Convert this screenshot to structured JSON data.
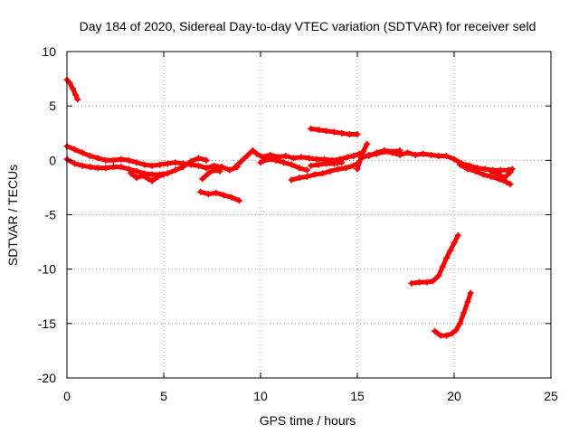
{
  "chart_data": {
    "type": "scatter",
    "title": "Day 184 of 2020, Sidereal Day-to-day VTEC variation (SDTVAR) for receiver seld",
    "xlabel": "GPS time / hours",
    "ylabel": "SDTVAR / TECUs",
    "xlim": [
      0,
      25
    ],
    "ylim": [
      -20,
      10
    ],
    "xticks": [
      0,
      5,
      10,
      15,
      20,
      25
    ],
    "yticks": [
      -20,
      -15,
      -10,
      -5,
      0,
      5,
      10
    ],
    "grid": true,
    "legend": "none",
    "series": [
      {
        "name": "SDTVAR",
        "color": "#ff0000",
        "marker": "+",
        "segments": [
          [
            [
              0.0,
              7.4
            ],
            [
              0.15,
              7.1
            ],
            [
              0.3,
              6.6
            ],
            [
              0.45,
              6.0
            ],
            [
              0.55,
              5.6
            ]
          ],
          [
            [
              0.0,
              1.3
            ],
            [
              0.4,
              1.0
            ],
            [
              0.8,
              0.7
            ],
            [
              1.2,
              0.4
            ],
            [
              1.6,
              0.2
            ],
            [
              2.0,
              0.0
            ],
            [
              2.4,
              0.0
            ],
            [
              2.8,
              0.1
            ],
            [
              3.2,
              0.0
            ],
            [
              3.6,
              -0.2
            ],
            [
              4.0,
              -0.4
            ],
            [
              4.4,
              -0.5
            ],
            [
              4.8,
              -0.4
            ],
            [
              5.2,
              -0.3
            ],
            [
              5.6,
              -0.2
            ],
            [
              6.0,
              -0.3
            ],
            [
              6.4,
              -0.4
            ],
            [
              6.8,
              -0.5
            ],
            [
              7.2,
              -0.7
            ],
            [
              7.6,
              -0.5
            ],
            [
              8.0,
              -0.6
            ],
            [
              8.4,
              -0.9
            ],
            [
              8.8,
              -0.6
            ]
          ],
          [
            [
              0.0,
              0.1
            ],
            [
              0.4,
              -0.3
            ],
            [
              0.8,
              -0.5
            ],
            [
              1.2,
              -0.6
            ],
            [
              1.6,
              -0.7
            ],
            [
              2.0,
              -0.7
            ],
            [
              2.4,
              -0.6
            ],
            [
              2.8,
              -0.6
            ],
            [
              3.2,
              -0.8
            ],
            [
              3.6,
              -1.0
            ],
            [
              4.0,
              -1.2
            ],
            [
              4.4,
              -1.3
            ],
            [
              4.8,
              -1.3
            ],
            [
              5.2,
              -1.2
            ],
            [
              5.6,
              -0.9
            ],
            [
              6.0,
              -0.6
            ],
            [
              6.4,
              -0.1
            ],
            [
              6.8,
              0.2
            ],
            [
              7.2,
              0.0
            ]
          ],
          [
            [
              3.3,
              -1.2
            ],
            [
              3.6,
              -1.6
            ],
            [
              3.9,
              -1.4
            ],
            [
              4.2,
              -1.7
            ],
            [
              4.4,
              -1.9
            ],
            [
              4.7,
              -1.5
            ],
            [
              5.0,
              -1.3
            ]
          ],
          [
            [
              7.0,
              -1.7
            ],
            [
              7.3,
              -1.2
            ],
            [
              7.6,
              -0.9
            ],
            [
              7.9,
              -1.0
            ]
          ],
          [
            [
              6.9,
              -2.9
            ],
            [
              7.3,
              -3.1
            ],
            [
              7.7,
              -3.0
            ],
            [
              8.1,
              -3.2
            ],
            [
              8.5,
              -3.4
            ],
            [
              8.9,
              -3.7
            ]
          ],
          [
            [
              8.7,
              -0.6
            ],
            [
              9.0,
              -0.1
            ],
            [
              9.3,
              0.4
            ],
            [
              9.6,
              0.9
            ],
            [
              9.8,
              0.6
            ],
            [
              10.1,
              0.3
            ],
            [
              10.5,
              0.5
            ],
            [
              10.9,
              0.3
            ],
            [
              11.3,
              0.4
            ],
            [
              11.7,
              0.2
            ],
            [
              12.1,
              0.3
            ],
            [
              12.5,
              0.2
            ],
            [
              12.9,
              0.1
            ],
            [
              13.3,
              0.1
            ],
            [
              13.7,
              0.0
            ],
            [
              14.1,
              0.1
            ],
            [
              14.5,
              0.3
            ],
            [
              14.8,
              0.4
            ],
            [
              15.1,
              0.6
            ]
          ],
          [
            [
              10.0,
              -0.2
            ],
            [
              10.4,
              0.1
            ],
            [
              10.8,
              0.0
            ],
            [
              11.2,
              -0.2
            ],
            [
              11.6,
              -0.4
            ],
            [
              12.0,
              -0.7
            ],
            [
              12.4,
              -0.9
            ]
          ],
          [
            [
              11.6,
              -1.8
            ],
            [
              12.0,
              -1.6
            ],
            [
              12.4,
              -1.5
            ],
            [
              12.8,
              -1.3
            ],
            [
              13.2,
              -1.2
            ],
            [
              13.6,
              -1.0
            ],
            [
              14.0,
              -0.8
            ],
            [
              14.4,
              -0.7
            ],
            [
              14.8,
              -0.5
            ],
            [
              15.0,
              -0.3
            ]
          ],
          [
            [
              12.6,
              -0.5
            ],
            [
              13.0,
              -0.4
            ],
            [
              13.4,
              -0.3
            ],
            [
              13.8,
              -0.3
            ],
            [
              14.2,
              -0.2
            ]
          ],
          [
            [
              12.6,
              2.9
            ],
            [
              13.0,
              2.8
            ],
            [
              13.4,
              2.7
            ],
            [
              13.8,
              2.6
            ],
            [
              14.2,
              2.5
            ],
            [
              14.6,
              2.4
            ],
            [
              15.0,
              2.4
            ]
          ],
          [
            [
              15.0,
              -0.8
            ],
            [
              15.3,
              0.8
            ],
            [
              15.5,
              1.5
            ]
          ],
          [
            [
              15.2,
              0.2
            ],
            [
              15.6,
              0.5
            ],
            [
              16.0,
              0.6
            ],
            [
              16.4,
              0.8
            ],
            [
              16.8,
              0.7
            ],
            [
              17.2,
              0.5
            ],
            [
              17.6,
              0.7
            ],
            [
              18.0,
              0.5
            ],
            [
              18.4,
              0.6
            ],
            [
              18.8,
              0.5
            ],
            [
              19.2,
              0.4
            ],
            [
              19.6,
              0.4
            ],
            [
              20.0,
              0.1
            ],
            [
              20.4,
              -0.3
            ],
            [
              20.8,
              -0.5
            ],
            [
              21.2,
              -0.7
            ],
            [
              21.6,
              -0.8
            ],
            [
              22.0,
              -0.9
            ],
            [
              22.4,
              -0.9
            ],
            [
              22.8,
              -0.9
            ],
            [
              23.0,
              -0.8
            ]
          ],
          [
            [
              15.6,
              0.4
            ],
            [
              16.0,
              0.7
            ],
            [
              16.4,
              0.9
            ],
            [
              16.8,
              0.8
            ],
            [
              17.2,
              0.9
            ]
          ],
          [
            [
              20.3,
              -0.4
            ],
            [
              20.7,
              -0.8
            ],
            [
              21.1,
              -1.0
            ],
            [
              21.5,
              -1.3
            ],
            [
              21.9,
              -1.5
            ],
            [
              22.3,
              -1.7
            ],
            [
              22.7,
              -2.0
            ],
            [
              22.9,
              -2.2
            ]
          ],
          [
            [
              21.9,
              -1.0
            ],
            [
              22.3,
              -1.3
            ],
            [
              22.6,
              -1.6
            ],
            [
              22.9,
              -1.1
            ]
          ],
          [
            [
              17.8,
              -11.3
            ],
            [
              18.2,
              -11.2
            ],
            [
              18.6,
              -11.2
            ],
            [
              18.9,
              -11.1
            ],
            [
              19.2,
              -10.6
            ],
            [
              19.4,
              -9.8
            ],
            [
              19.6,
              -9.0
            ],
            [
              19.8,
              -8.3
            ],
            [
              20.0,
              -7.6
            ],
            [
              20.2,
              -6.9
            ]
          ],
          [
            [
              19.0,
              -15.7
            ],
            [
              19.3,
              -16.1
            ],
            [
              19.6,
              -16.1
            ],
            [
              19.9,
              -15.9
            ],
            [
              20.1,
              -15.6
            ],
            [
              20.3,
              -15.0
            ],
            [
              20.5,
              -14.0
            ],
            [
              20.7,
              -13.0
            ],
            [
              20.85,
              -12.2
            ]
          ]
        ]
      }
    ]
  }
}
